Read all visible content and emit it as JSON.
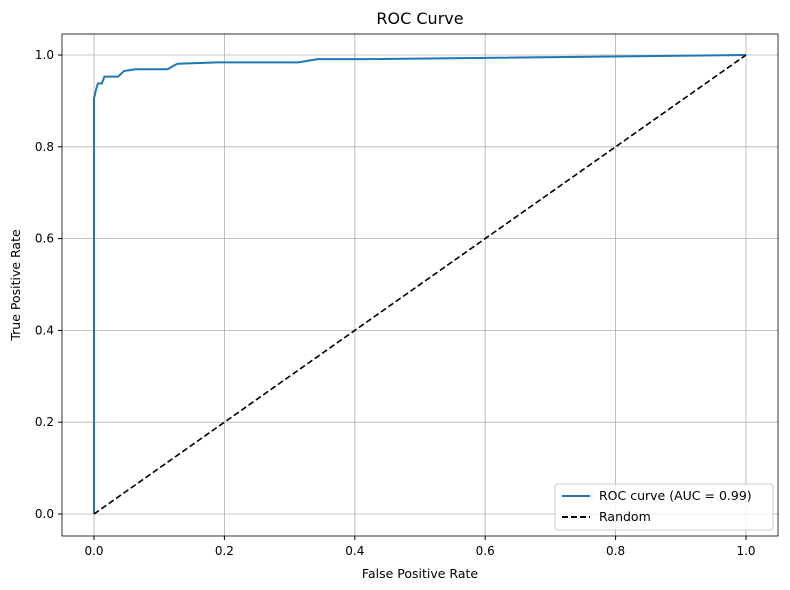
{
  "chart_data": {
    "type": "line",
    "title": "ROC Curve",
    "xlabel": "False Positive Rate",
    "ylabel": "True Positive Rate",
    "xlim": [
      -0.05,
      1.05
    ],
    "ylim": [
      -0.05,
      1.05
    ],
    "xticks": [
      "0.0",
      "0.2",
      "0.4",
      "0.6",
      "0.8",
      "1.0"
    ],
    "yticks": [
      "0.0",
      "0.2",
      "0.4",
      "0.6",
      "0.8",
      "1.0"
    ],
    "grid": true,
    "legend_placement": "lower-right",
    "series": [
      {
        "name": "ROC curve (AUC = 0.99)",
        "color": "#1f77b4",
        "style": "solid",
        "x": [
          0,
          0,
          0,
          0.003,
          0.006,
          0.012,
          0.016,
          0.037,
          0.046,
          0.063,
          0.113,
          0.12,
          0.128,
          0.19,
          0.313,
          0.343,
          0.415,
          1.0
        ],
        "y": [
          0,
          0.858,
          0.905,
          0.924,
          0.938,
          0.938,
          0.953,
          0.953,
          0.965,
          0.969,
          0.969,
          0.975,
          0.981,
          0.984,
          0.984,
          0.991,
          0.991,
          1.0
        ]
      },
      {
        "name": "Random",
        "color": "#000000",
        "style": "dashed",
        "x": [
          0,
          1
        ],
        "y": [
          0,
          1
        ]
      }
    ]
  }
}
